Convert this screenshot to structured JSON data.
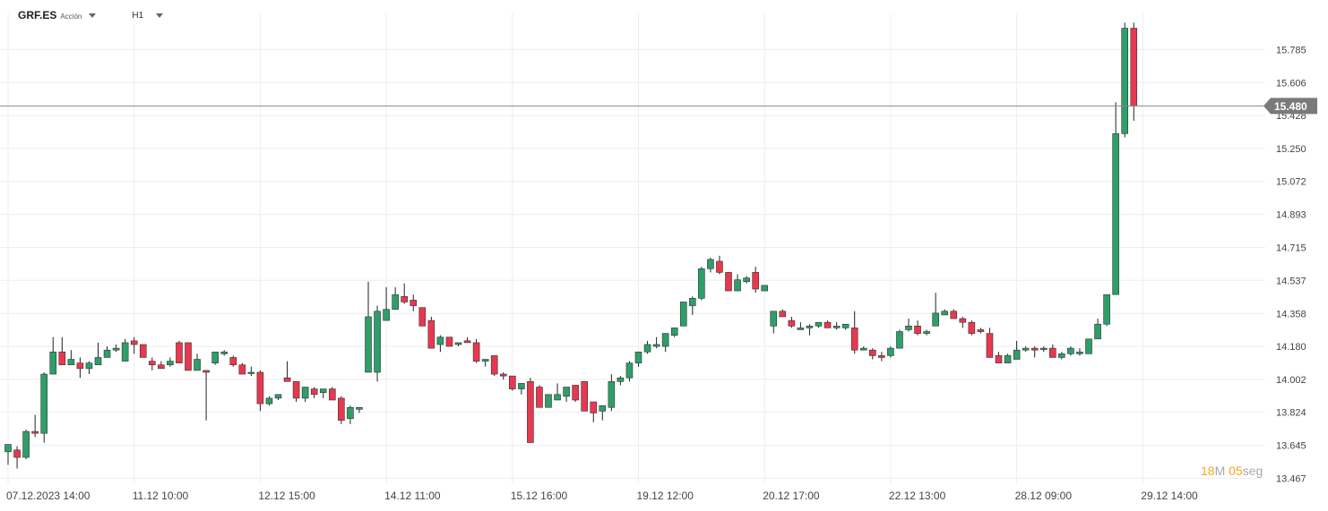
{
  "toolbar": {
    "symbol": "GRF.ES",
    "symbol_type": "Acción",
    "timeframe": "H1"
  },
  "timer": {
    "minutes": "18",
    "minutes_unit": "M",
    "seconds": "05",
    "seconds_unit": "seg"
  },
  "colors": {
    "up": "#2e9e6a",
    "down": "#e8384f",
    "grid": "#eeeeee",
    "price_line": "#888888",
    "price_tag": "#7a7a7a"
  },
  "chart_data": {
    "type": "candlestick",
    "title": "",
    "ylim": [
      13.44,
      15.98
    ],
    "y_ticks": [
      "15.785",
      "15.606",
      "15.428",
      "15.250",
      "15.072",
      "14.893",
      "14.715",
      "14.537",
      "14.358",
      "14.180",
      "14.002",
      "13.824",
      "13.645",
      "13.467"
    ],
    "x_labels": [
      "07.12.2023  14:00",
      "11.12  10:00",
      "12.12  15:00",
      "14.12  11:00",
      "15.12  16:00",
      "19.12  12:00",
      "20.12  17:00",
      "22.12  13:00",
      "28.12  09:00",
      "29.12  14:00"
    ],
    "x_label_candle_index": [
      0,
      14,
      28,
      42,
      56,
      70,
      84,
      98,
      112,
      126
    ],
    "current_price": "15.480",
    "candles": [
      [
        13.61,
        13.65,
        13.54,
        13.65
      ],
      [
        13.62,
        13.58,
        13.52,
        13.64
      ],
      [
        13.58,
        13.72,
        13.57,
        13.73
      ],
      [
        13.72,
        13.71,
        13.69,
        13.81
      ],
      [
        13.71,
        14.03,
        13.66,
        14.04
      ],
      [
        14.03,
        14.15,
        14.04,
        14.23
      ],
      [
        14.15,
        14.08,
        14.09,
        14.23
      ],
      [
        14.08,
        14.11,
        14.09,
        14.16
      ],
      [
        14.09,
        14.06,
        14.01,
        14.12
      ],
      [
        14.06,
        14.09,
        14.03,
        14.1
      ],
      [
        14.08,
        14.12,
        14.1,
        14.2
      ],
      [
        14.12,
        14.16,
        14.14,
        14.18
      ],
      [
        14.16,
        14.17,
        14.15,
        14.19
      ],
      [
        14.1,
        14.2,
        14.11,
        14.22
      ],
      [
        14.21,
        14.19,
        14.14,
        14.23
      ],
      [
        14.19,
        14.12,
        14.13,
        14.19
      ],
      [
        14.1,
        14.08,
        14.05,
        14.12
      ],
      [
        14.08,
        14.06,
        14.07,
        14.1
      ],
      [
        14.08,
        14.1,
        14.07,
        14.12
      ],
      [
        14.2,
        14.09,
        14.1,
        14.21
      ],
      [
        14.2,
        14.05,
        14.07,
        14.2
      ],
      [
        14.05,
        14.11,
        14.06,
        14.14
      ],
      [
        14.05,
        14.04,
        13.78,
        14.04
      ],
      [
        14.09,
        14.15,
        14.08,
        14.15
      ],
      [
        14.14,
        14.15,
        14.13,
        14.16
      ],
      [
        14.12,
        14.08,
        14.07,
        14.13
      ],
      [
        14.08,
        14.03,
        14.03,
        14.09
      ],
      [
        14.04,
        14.04,
        14.02,
        14.07
      ],
      [
        14.04,
        13.87,
        13.83,
        14.05
      ],
      [
        13.87,
        13.9,
        13.86,
        13.91
      ],
      [
        13.9,
        13.92,
        13.89,
        13.92
      ],
      [
        14.01,
        13.99,
        14.0,
        14.1
      ],
      [
        13.99,
        13.9,
        13.88,
        13.99
      ],
      [
        13.9,
        13.96,
        13.88,
        13.96
      ],
      [
        13.95,
        13.92,
        13.9,
        13.96
      ],
      [
        13.93,
        13.95,
        13.9,
        13.95
      ],
      [
        13.95,
        13.89,
        13.89,
        13.96
      ],
      [
        13.9,
        13.78,
        13.76,
        13.91
      ],
      [
        13.79,
        13.85,
        13.76,
        13.86
      ],
      [
        13.84,
        13.85,
        13.82,
        13.85
      ],
      [
        14.04,
        14.34,
        14.04,
        14.53
      ],
      [
        14.04,
        14.37,
        13.99,
        14.4
      ],
      [
        14.32,
        14.38,
        14.33,
        14.5
      ],
      [
        14.38,
        14.46,
        14.39,
        14.5
      ],
      [
        14.45,
        14.42,
        14.41,
        14.52
      ],
      [
        14.43,
        14.4,
        14.37,
        14.46
      ],
      [
        14.39,
        14.29,
        14.29,
        14.39
      ],
      [
        14.32,
        14.17,
        14.17,
        14.34
      ],
      [
        14.19,
        14.23,
        14.15,
        14.24
      ],
      [
        14.23,
        14.18,
        14.19,
        14.21
      ],
      [
        14.19,
        14.2,
        14.18,
        14.2
      ],
      [
        14.21,
        14.2,
        14.2,
        14.23
      ],
      [
        14.2,
        14.1,
        14.09,
        14.22
      ],
      [
        14.1,
        14.11,
        14.07,
        14.11
      ],
      [
        14.13,
        14.03,
        14.02,
        14.13
      ],
      [
        14.03,
        14.02,
        14.0,
        14.04
      ],
      [
        14.02,
        13.95,
        13.94,
        14.02
      ],
      [
        13.95,
        13.98,
        13.92,
        13.98
      ],
      [
        13.99,
        13.66,
        13.66,
        14.01
      ],
      [
        13.96,
        13.85,
        13.85,
        13.97
      ],
      [
        13.85,
        13.92,
        13.85,
        13.92
      ],
      [
        13.89,
        13.92,
        13.89,
        13.98
      ],
      [
        13.91,
        13.96,
        13.88,
        13.96
      ],
      [
        13.97,
        13.89,
        13.88,
        13.97
      ],
      [
        13.99,
        13.83,
        13.83,
        13.98
      ],
      [
        13.88,
        13.82,
        13.77,
        13.88
      ],
      [
        13.83,
        13.86,
        13.78,
        13.86
      ],
      [
        13.85,
        13.99,
        13.83,
        14.03
      ],
      [
        13.99,
        14.01,
        13.97,
        14.02
      ],
      [
        14.01,
        14.09,
        13.99,
        14.1
      ],
      [
        14.09,
        14.15,
        14.07,
        14.15
      ],
      [
        14.15,
        14.19,
        14.14,
        14.21
      ],
      [
        14.18,
        14.19,
        14.17,
        14.23
      ],
      [
        14.18,
        14.25,
        14.15,
        14.25
      ],
      [
        14.24,
        14.28,
        14.23,
        14.28
      ],
      [
        14.29,
        14.42,
        14.3,
        14.42
      ],
      [
        14.4,
        14.44,
        14.35,
        14.45
      ],
      [
        14.44,
        14.6,
        14.43,
        14.61
      ],
      [
        14.6,
        14.65,
        14.58,
        14.66
      ],
      [
        14.64,
        14.58,
        14.57,
        14.67
      ],
      [
        14.58,
        14.48,
        14.49,
        14.58
      ],
      [
        14.48,
        14.54,
        14.48,
        14.57
      ],
      [
        14.53,
        14.55,
        14.52,
        14.56
      ],
      [
        14.58,
        14.49,
        14.47,
        14.61
      ],
      [
        14.48,
        14.51,
        14.48,
        14.51
      ],
      [
        14.29,
        14.37,
        14.25,
        14.37
      ],
      [
        14.37,
        14.34,
        14.35,
        14.38
      ],
      [
        14.32,
        14.29,
        14.28,
        14.34
      ],
      [
        14.27,
        14.28,
        14.27,
        14.31
      ],
      [
        14.28,
        14.29,
        14.24,
        14.3
      ],
      [
        14.29,
        14.31,
        14.28,
        14.31
      ],
      [
        14.31,
        14.28,
        14.28,
        14.32
      ],
      [
        14.28,
        14.29,
        14.27,
        14.31
      ],
      [
        14.28,
        14.3,
        14.27,
        14.3
      ],
      [
        14.28,
        14.16,
        14.14,
        14.37
      ],
      [
        14.16,
        14.17,
        14.16,
        14.18
      ],
      [
        14.16,
        14.13,
        14.11,
        14.17
      ],
      [
        14.13,
        14.12,
        14.1,
        14.15
      ],
      [
        14.13,
        14.17,
        14.12,
        14.18
      ],
      [
        14.17,
        14.26,
        14.17,
        14.27
      ],
      [
        14.27,
        14.29,
        14.26,
        14.33
      ],
      [
        14.29,
        14.25,
        14.24,
        14.32
      ],
      [
        14.25,
        14.26,
        14.24,
        14.27
      ],
      [
        14.29,
        14.36,
        14.3,
        14.47
      ],
      [
        14.35,
        14.37,
        14.36,
        14.38
      ],
      [
        14.37,
        14.33,
        14.33,
        14.38
      ],
      [
        14.33,
        14.31,
        14.28,
        14.34
      ],
      [
        14.31,
        14.25,
        14.24,
        14.32
      ],
      [
        14.27,
        14.26,
        14.25,
        14.28
      ],
      [
        14.25,
        14.12,
        14.12,
        14.28
      ],
      [
        14.13,
        14.09,
        14.11,
        14.15
      ],
      [
        14.09,
        14.13,
        14.1,
        14.14
      ],
      [
        14.11,
        14.16,
        14.12,
        14.21
      ],
      [
        14.16,
        14.17,
        14.15,
        14.18
      ],
      [
        14.17,
        14.16,
        14.12,
        14.18
      ],
      [
        14.17,
        14.17,
        14.15,
        14.18
      ],
      [
        14.17,
        14.12,
        14.12,
        14.19
      ],
      [
        14.12,
        14.14,
        14.11,
        14.15
      ],
      [
        14.14,
        14.17,
        14.13,
        14.18
      ],
      [
        14.14,
        14.15,
        14.13,
        14.17
      ],
      [
        14.14,
        14.22,
        14.16,
        14.22
      ],
      [
        14.22,
        14.3,
        14.22,
        14.33
      ],
      [
        14.3,
        14.46,
        14.29,
        14.45
      ],
      [
        14.46,
        15.33,
        14.46,
        15.5
      ],
      [
        15.33,
        15.9,
        15.31,
        15.93
      ],
      [
        15.9,
        15.48,
        15.4,
        15.93
      ]
    ]
  }
}
